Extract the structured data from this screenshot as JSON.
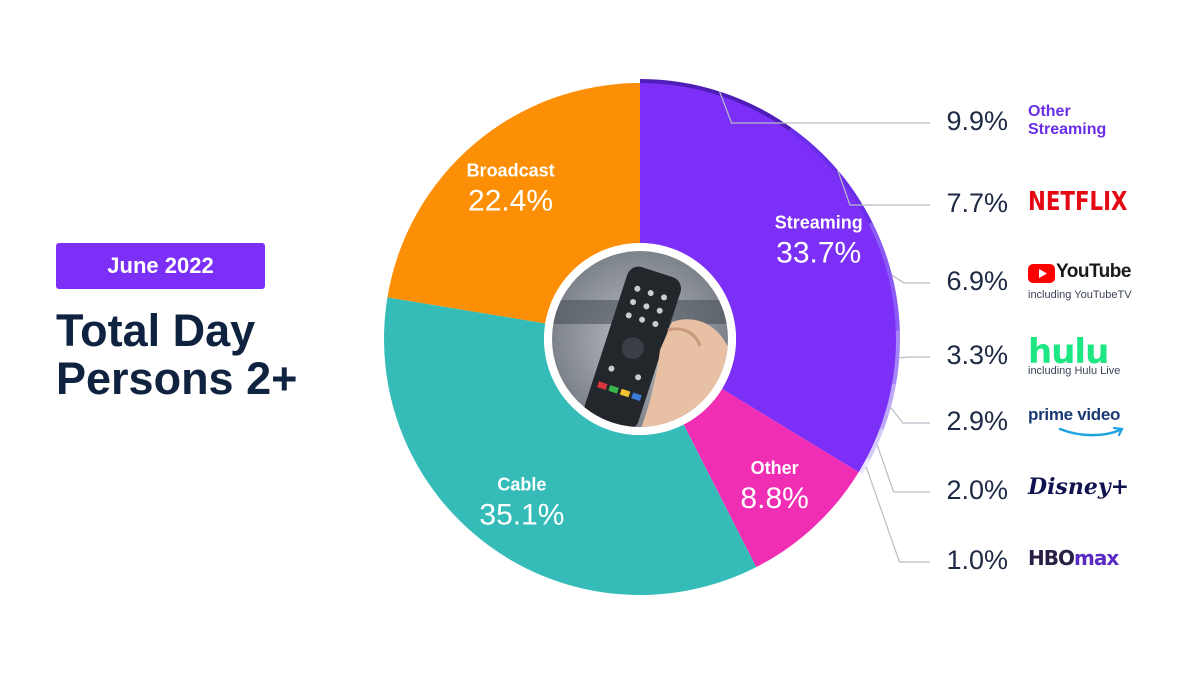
{
  "panel": {
    "date_badge": "June 2022",
    "heading_line1": "Total Day",
    "heading_line2": "Persons 2+"
  },
  "chart_data": [
    {
      "type": "pie",
      "variant": "donut",
      "start": "top, clockwise",
      "slices": [
        {
          "label": "Streaming",
          "value": 33.7,
          "value_label": "33.7%",
          "color": "#7b2ff7"
        },
        {
          "label": "Other",
          "value": 8.8,
          "value_label": "8.8%",
          "color": "#f02eb4"
        },
        {
          "label": "Cable",
          "value": 35.1,
          "value_label": "35.1%",
          "color": "#35bcb9"
        },
        {
          "label": "Broadcast",
          "value": 22.4,
          "value_label": "22.4%",
          "color": "#fd8f06"
        }
      ],
      "center_image": "tv-remote-photo"
    },
    {
      "type": "pie",
      "variant": "outer-ring-breakdown",
      "parent": "Streaming",
      "slices": [
        {
          "label": "Other Streaming",
          "value": 9.9,
          "value_label": "9.9%",
          "color": "#4f1db8"
        },
        {
          "label": "NETFLIX",
          "value": 7.7,
          "value_label": "7.7%",
          "color": "#6a2ee8"
        },
        {
          "label": "YouTube",
          "sublabel": "including YouTubeTV",
          "value": 6.9,
          "value_label": "6.9%",
          "color": "#8a5bf5"
        },
        {
          "label": "hulu",
          "sublabel": "including Hulu Live",
          "value": 3.3,
          "value_label": "3.3%",
          "color": "#a585f7"
        },
        {
          "label": "prime video",
          "value": 2.9,
          "value_label": "2.9%",
          "color": "#bea9f9"
        },
        {
          "label": "Disney+",
          "value": 2.0,
          "value_label": "2.0%",
          "color": "#d6cafb"
        },
        {
          "label": "HBO max",
          "value": 1.0,
          "value_label": "1.0%",
          "color": "#eae4fd"
        }
      ]
    }
  ],
  "brands": {
    "other_streaming_line1": "Other",
    "other_streaming_line2": "Streaming",
    "netflix": "NETFLIX",
    "youtube": "YouTube",
    "youtube_sub": "including YouTubeTV",
    "hulu": "hulu",
    "hulu_sub": "including Hulu Live",
    "prime": "prime video",
    "disney": "Disney+",
    "hbo": "HBO",
    "max": "max"
  },
  "colors": {
    "heading": "#0f2340",
    "badge": "#7b2ff7",
    "connector": "#b8bcc6"
  }
}
